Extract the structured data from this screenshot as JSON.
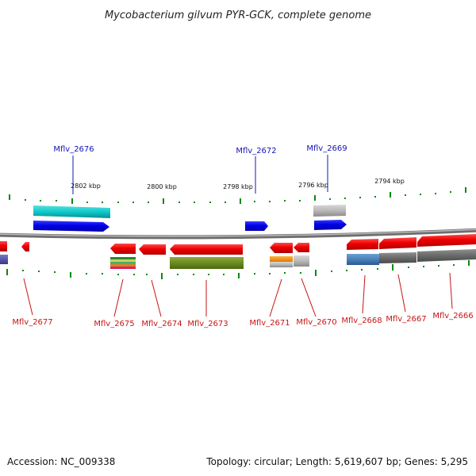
{
  "title": "Mycobacterium gilvum PYR-GCK, complete genome",
  "footer": {
    "accession": "Accession: NC_009338",
    "topology": "Topology: circular; Length: 5,619,607 bp; Genes: 5,295"
  },
  "ruler": {
    "labels": [
      "2802 kbp",
      "2800 kbp",
      "2798 kbp",
      "2796 kbp",
      "2794 kbp"
    ]
  },
  "genes_top": [
    "Mflv_2676",
    "Mflv_2672",
    "Mflv_2669"
  ],
  "genes_bottom": [
    "Mflv_2677",
    "Mflv_2675",
    "Mflv_2674",
    "Mflv_2673",
    "Mflv_2671",
    "Mflv_2670",
    "Mflv_2668",
    "Mflv_2667",
    "Mflv_2666"
  ],
  "colors": {
    "forward_cds": "#0000ee",
    "reverse_cds": "#ee0000",
    "backbone": "#8a8a8a",
    "tick": "#0a8a0a",
    "label_top": "#1414b4",
    "label_bottom": "#c81414"
  }
}
